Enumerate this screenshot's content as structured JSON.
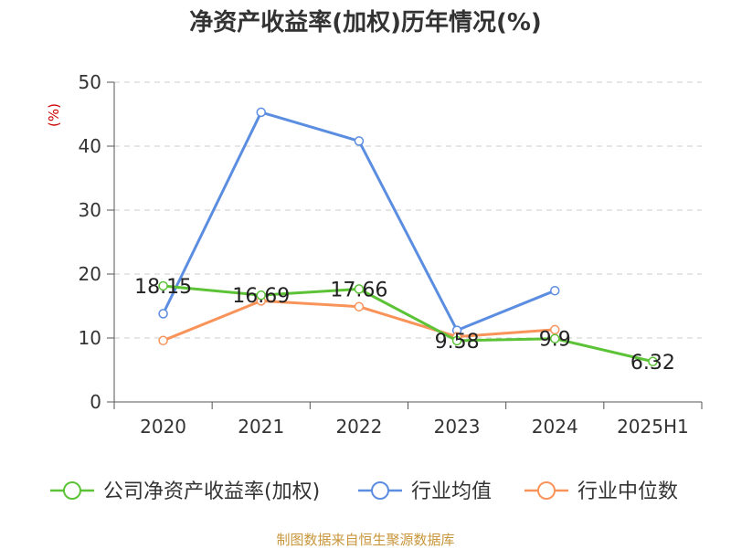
{
  "title": "净资产收益率(加权)历年情况(%)",
  "source": "制图数据来自恒生聚源数据库",
  "colors": {
    "company": "#5cc236",
    "industry_avg": "#5b8de0",
    "industry_median": "#f8945a",
    "axis": "#555555",
    "grid": "#cccccc",
    "unit": "#cc0000"
  },
  "chart_data": {
    "type": "line",
    "title": "净资产收益率(加权)历年情况(%)",
    "categories": [
      "2020",
      "2021",
      "2022",
      "2023",
      "2024",
      "2025H1"
    ],
    "ylabel": "(%)",
    "xlabel": "",
    "ylim": [
      0,
      50
    ],
    "yticks": [
      0,
      10,
      20,
      30,
      40,
      50
    ],
    "grid": "horizontal dashed",
    "legend": "bottom",
    "series": [
      {
        "name": "公司净资产收益率(加权)",
        "color": "#5cc236",
        "values": [
          18.15,
          16.69,
          17.66,
          9.58,
          9.9,
          6.32
        ],
        "labels": [
          "18.15",
          "16.69",
          "17.66",
          "9.58",
          "9.9",
          "6.32"
        ]
      },
      {
        "name": "行业均值",
        "color": "#5b8de0",
        "values": [
          13.8,
          45.3,
          40.8,
          11.2,
          17.4,
          null
        ]
      },
      {
        "name": "行业中位数",
        "color": "#f8945a",
        "values": [
          9.6,
          15.8,
          14.9,
          10.2,
          11.3,
          null
        ]
      }
    ]
  }
}
